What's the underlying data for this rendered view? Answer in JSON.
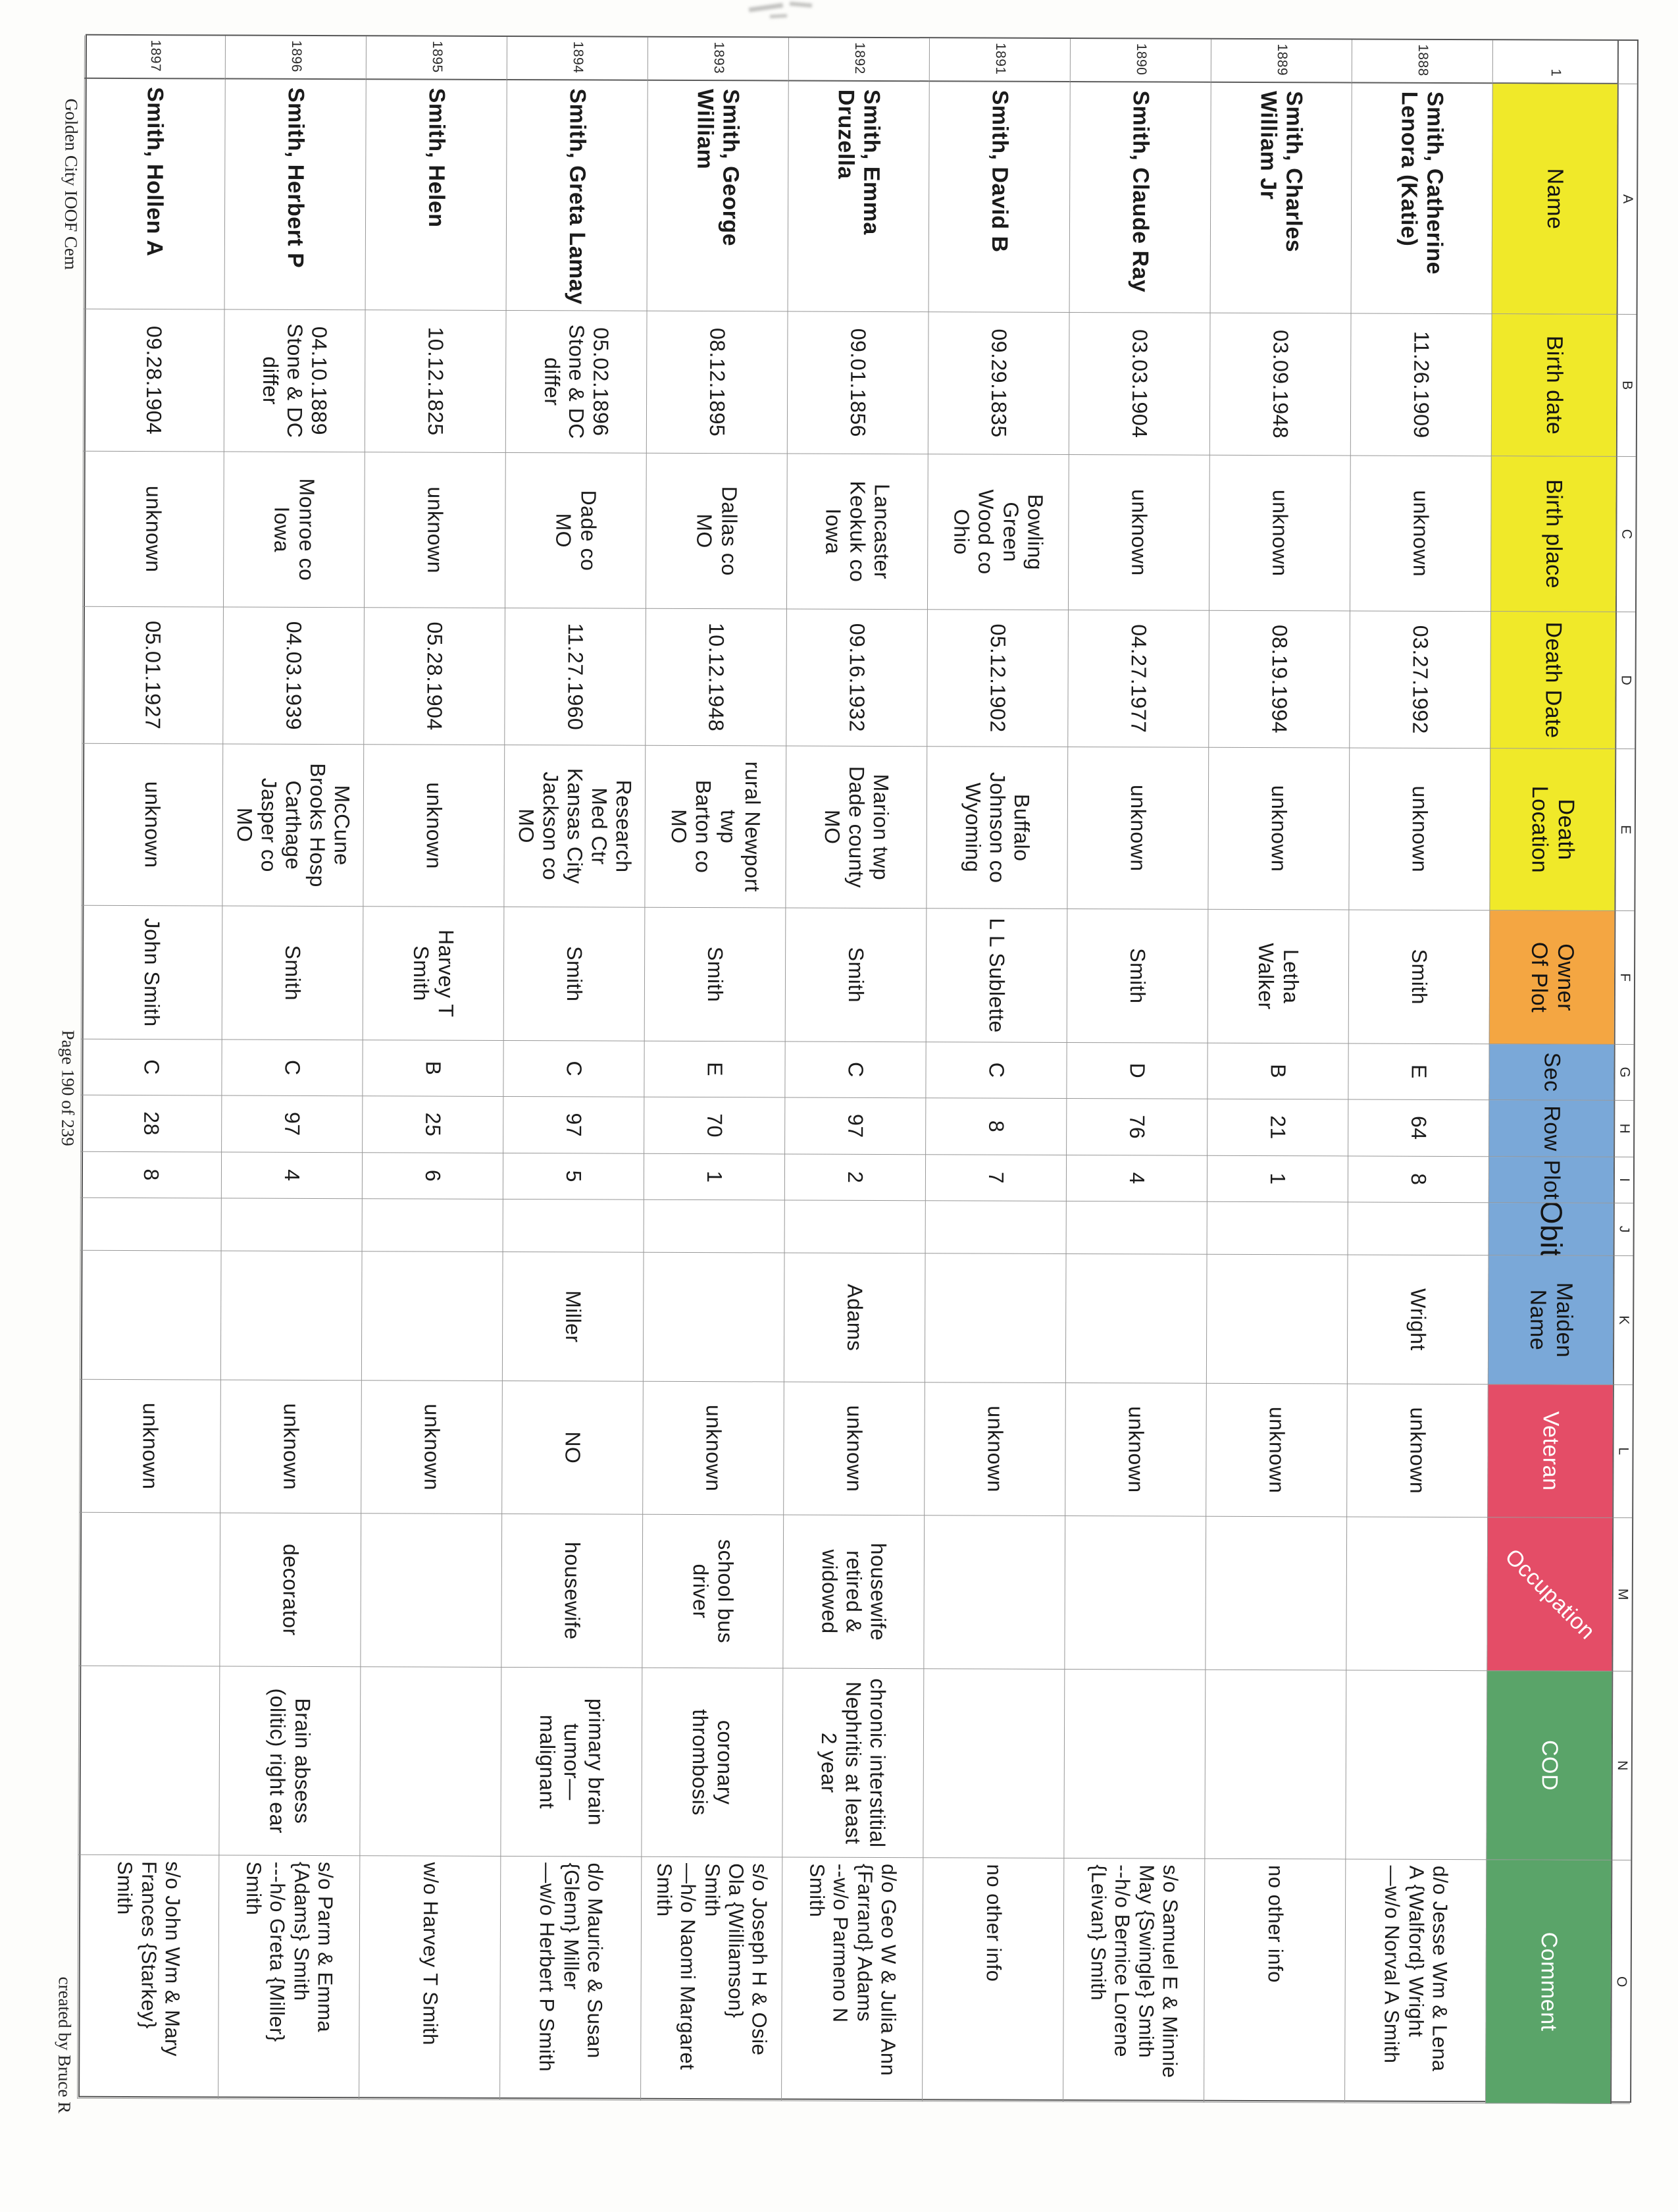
{
  "footer": {
    "left": "Golden City IOOF Cem",
    "center": "Page 190 of 239",
    "right": "created by Bruce R"
  },
  "sheet": {
    "row_header_label": "1",
    "column_letters": [
      "A",
      "B",
      "C",
      "D",
      "E",
      "F",
      "G",
      "H",
      "I",
      "J",
      "K",
      "L",
      "M",
      "N",
      "O"
    ],
    "fields": [
      {
        "key": "name",
        "letter": "A",
        "label": "Name",
        "bg": "#f0e929",
        "fg": "#141414",
        "align": "left",
        "cls": "name"
      },
      {
        "key": "birth_date",
        "letter": "B",
        "label": "Birth date",
        "bg": "#f0e929",
        "fg": "#141414"
      },
      {
        "key": "birth_place",
        "letter": "C",
        "label": "Birth place",
        "bg": "#f0e929",
        "fg": "#141414"
      },
      {
        "key": "death_date",
        "letter": "D",
        "label": "Death Date",
        "bg": "#f0e929",
        "fg": "#141414"
      },
      {
        "key": "death_location",
        "letter": "E",
        "label": "Death\nLocation",
        "bg": "#f0e929",
        "fg": "#141414"
      },
      {
        "key": "owner",
        "letter": "F",
        "label": "Owner\nOf Plot",
        "bg": "#f4a642",
        "fg": "#141414"
      },
      {
        "key": "sec",
        "letter": "G",
        "label": "Sec",
        "bg": "#7aa8d8",
        "fg": "#141414"
      },
      {
        "key": "row",
        "letter": "H",
        "label": "Row",
        "bg": "#7aa8d8",
        "fg": "#141414"
      },
      {
        "key": "plot",
        "letter": "I",
        "label": "Plot",
        "bg": "#7aa8d8",
        "fg": "#141414"
      },
      {
        "key": "obit",
        "letter": "J",
        "label": "Obit",
        "bg": "#7aa8d8",
        "fg": "#141414",
        "hdrcls": "obit-hdr"
      },
      {
        "key": "maiden_name",
        "letter": "K",
        "label": "Maiden\nName",
        "bg": "#7aa8d8",
        "fg": "#141414"
      },
      {
        "key": "veteran",
        "letter": "L",
        "label": "Veteran",
        "bg": "#e44d67",
        "fg": "#ffffff"
      },
      {
        "key": "occupation",
        "letter": "M",
        "label": "Occupation",
        "bg": "#e44d67",
        "fg": "#ffffff",
        "diagonal": true
      },
      {
        "key": "cod",
        "letter": "N",
        "label": "COD",
        "bg": "#5aa469",
        "fg": "#ffffff"
      },
      {
        "key": "comment",
        "letter": "O",
        "label": "Comment",
        "bg": "#5aa469",
        "fg": "#ffffff",
        "align": "left",
        "cls": "comment"
      }
    ],
    "rows": [
      {
        "row_number": "1888",
        "name": "Smith, Catherine\nLenora (Katie)",
        "birth_date": "11.26.1909",
        "birth_place": "unknown",
        "death_date": "03.27.1992",
        "death_location": "unknown",
        "owner": "Smith",
        "sec": "E",
        "row": "64",
        "plot": "8",
        "obit": "",
        "maiden_name": "Wright",
        "veteran": "unknown",
        "occupation": "",
        "cod": "",
        "comment": "d/o Jesse Wm & Lena\nA {Walford} Wright\n—w/o Norval A Smith"
      },
      {
        "row_number": "1889",
        "name": "Smith, Charles\nWilliam Jr",
        "birth_date": "03.09.1948",
        "birth_place": "unknown",
        "death_date": "08.19.1994",
        "death_location": "unknown",
        "owner": "Letha\nWalker",
        "sec": "B",
        "row": "21",
        "plot": "1",
        "obit": "",
        "maiden_name": "",
        "veteran": "unknown",
        "occupation": "",
        "cod": "",
        "comment": "no other info"
      },
      {
        "row_number": "1890",
        "name": "Smith, Claude Ray",
        "birth_date": "03.03.1904",
        "birth_place": "unknown",
        "death_date": "04.27.1977",
        "death_location": "unknown",
        "owner": "Smith",
        "sec": "D",
        "row": "76",
        "plot": "4",
        "obit": "",
        "maiden_name": "",
        "veteran": "unknown",
        "occupation": "",
        "cod": "",
        "comment": "s/o Samuel E & Minnie\nMay {Swingle} Smith\n--h/o Bernice Lorene\n{Leivan} Smith"
      },
      {
        "row_number": "1891",
        "name": "Smith, David B",
        "birth_date": "09.29.1835",
        "birth_place": "Bowling\nGreen\nWood co\nOhio",
        "death_date": "05.12.1902",
        "death_location": "Buffalo\nJohnson co\nWyoming",
        "owner": "L L Sublette",
        "sec": "C",
        "row": "8",
        "plot": "7",
        "obit": "",
        "maiden_name": "",
        "veteran": "unknown",
        "occupation": "",
        "cod": "",
        "comment": "no other info"
      },
      {
        "row_number": "1892",
        "name": "Smith, Emma\nDruzella",
        "birth_date": "09.01.1856",
        "birth_place": "Lancaster\nKeokuk co\nIowa",
        "death_date": "09.16.1932",
        "death_location": "Marion twp\nDade county\nMO",
        "owner": "Smith",
        "sec": "C",
        "row": "97",
        "plot": "2",
        "obit": "",
        "maiden_name": "Adams",
        "veteran": "unknown",
        "occupation": "housewife\nretired &\nwidowed",
        "cod": "chronic interstitial\nNephritis at least\n2 year",
        "comment": "d/o Geo W & Julia Ann\n{Farrand} Adams\n--w/o Parmeno N\nSmith"
      },
      {
        "row_number": "1893",
        "name": "Smith, George\nWilliam",
        "birth_date": "08.12.1895",
        "birth_place": "Dallas co\nMO",
        "death_date": "10.12.1948",
        "death_location": "rural Newport\ntwp\nBarton co\nMO",
        "owner": "Smith",
        "sec": "E",
        "row": "70",
        "plot": "1",
        "obit": "",
        "maiden_name": "",
        "veteran": "unknown",
        "occupation": "school bus\ndriver",
        "cod": "coronary\nthrombosis",
        "comment": "s/o Joseph H & Osie\nOla {Williamson}\nSmith\n—h/o Naomi Margaret\nSmith"
      },
      {
        "row_number": "1894",
        "name": "Smith, Greta Lamay",
        "birth_date": "05.02.1896\nStone & DC\ndiffer",
        "birth_place": "Dade co\nMO",
        "death_date": "11.27.1960",
        "death_location": "Research\nMed Ctr\nKansas City\nJackson co\nMO",
        "owner": "Smith",
        "sec": "C",
        "row": "97",
        "plot": "5",
        "obit": "",
        "maiden_name": "Miller",
        "veteran": "NO",
        "occupation": "housewife",
        "cod": "primary brain\ntumor—\nmalignant",
        "comment": "d/o Maurice & Susan\n{Glenn} Miller\n—w/o Herbert P Smith"
      },
      {
        "row_number": "1895",
        "name": "Smith, Helen",
        "birth_date": "10.12.1825",
        "birth_place": "unknown",
        "death_date": "05.28.1904",
        "death_location": "unknown",
        "owner": "Harvey T\nSmith",
        "sec": "B",
        "row": "25",
        "plot": "6",
        "obit": "",
        "maiden_name": "",
        "veteran": "unknown",
        "occupation": "",
        "cod": "",
        "comment": "w/o Harvey T Smith"
      },
      {
        "row_number": "1896",
        "name": "Smith, Herbert P",
        "birth_date": "04.10.1889\nStone & DC\ndiffer",
        "birth_place": "Monroe co\nIowa",
        "death_date": "04.03.1939",
        "death_location": "McCune\nBrooks Hosp\nCarthage\nJasper co\nMO",
        "owner": "Smith",
        "sec": "C",
        "row": "97",
        "plot": "4",
        "obit": "",
        "maiden_name": "",
        "veteran": "unknown",
        "occupation": "decorator",
        "cod": "Brain absess\n(olitic) right ear",
        "comment": "s/o Parm & Emma\n{Adams} Smith\n---h/o Greta {Miller}\nSmith"
      },
      {
        "row_number": "1897",
        "name": "Smith, Hollen A",
        "birth_date": "09.28.1904",
        "birth_place": "unknown",
        "death_date": "05.01.1927",
        "death_location": "unknown",
        "owner": "John Smith",
        "sec": "C",
        "row": "28",
        "plot": "8",
        "obit": "",
        "maiden_name": "",
        "veteran": "unknown",
        "occupation": "",
        "cod": "",
        "comment": "s/o John Wm & Mary\nFrances {Starkey}\nSmith"
      }
    ]
  }
}
